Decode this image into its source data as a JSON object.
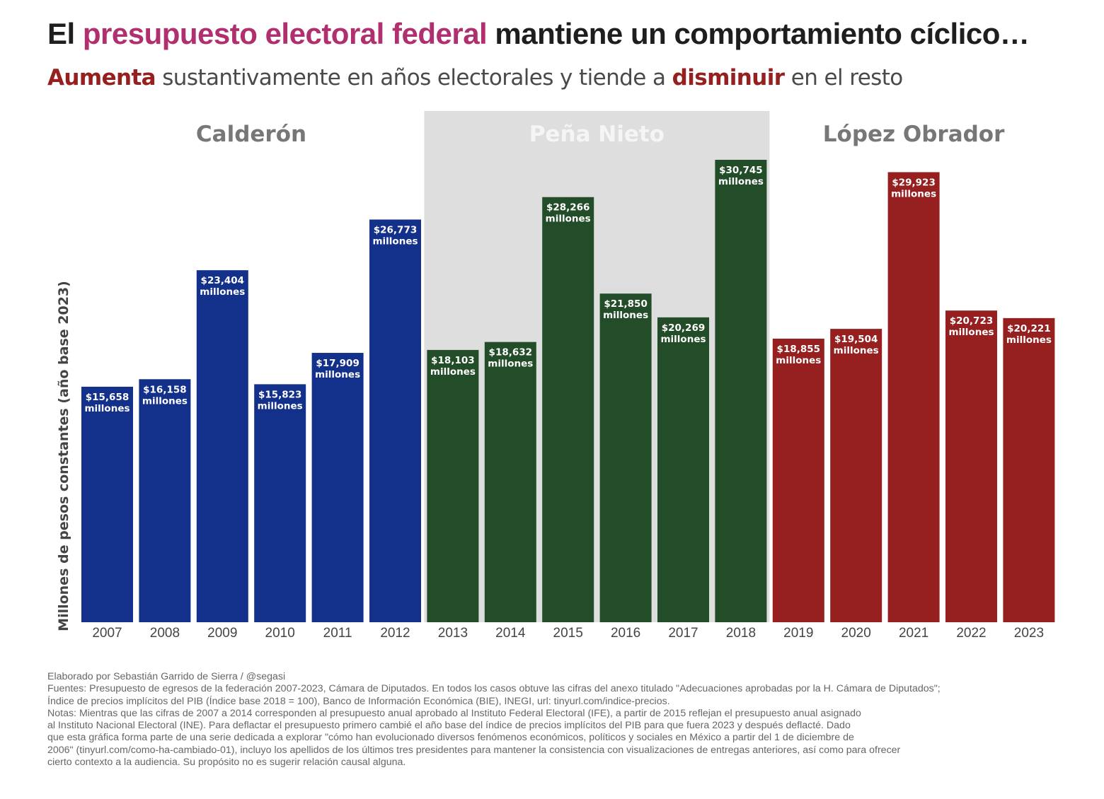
{
  "title": {
    "part1": "El ",
    "highlight": "presupuesto electoral federal",
    "part2": " mantiene un comportamiento cíclico…"
  },
  "subtitle": {
    "highlight1": "Aumenta",
    "part1": " sustantivamente en años electorales y tiende a ",
    "highlight2": "disminuir",
    "part2": " en el resto"
  },
  "colors": {
    "title_highlight": "#b0306f",
    "subtitle_highlight": "#962020",
    "calderon": "#13308a",
    "pena_nieto": "#234d28",
    "lopez_obrador": "#962020",
    "period_shade": "#dedede",
    "period_label": "#777777",
    "period_label_shaded": "#f5f5f5"
  },
  "chart_data": {
    "type": "bar",
    "title": "El presupuesto electoral federal mantiene un comportamiento cíclico…",
    "subtitle": "Aumenta sustantivamente en años electorales y tiende a disminuir en el resto",
    "xlabel": "",
    "ylabel": "Millones de pesos constantes (año base 2023)",
    "ylim": [
      0,
      30745
    ],
    "grid": false,
    "legend": "none",
    "categories": [
      "2007",
      "2008",
      "2009",
      "2010",
      "2011",
      "2012",
      "2013",
      "2014",
      "2015",
      "2016",
      "2017",
      "2018",
      "2019",
      "2020",
      "2021",
      "2022",
      "2023"
    ],
    "values": [
      15658,
      16158,
      23404,
      15823,
      17909,
      26773,
      18103,
      18632,
      28266,
      21850,
      20269,
      30745,
      18855,
      19504,
      29923,
      20723,
      20221
    ],
    "data_labels": [
      "$15,658",
      "$16,158",
      "$23,404",
      "$15,823",
      "$17,909",
      "$26,773",
      "$18,103",
      "$18,632",
      "$28,266",
      "$21,850",
      "$20,269",
      "$30,745",
      "$18,855",
      "$19,504",
      "$29,923",
      "$20,723",
      "$20,221"
    ],
    "data_label_unit": "millones",
    "periods": [
      {
        "name": "Calderón",
        "first": 0,
        "last": 5,
        "color_key": "calderon",
        "shaded": false
      },
      {
        "name": "Peña Nieto",
        "first": 6,
        "last": 11,
        "color_key": "pena_nieto",
        "shaded": true
      },
      {
        "name": "López Obrador",
        "first": 12,
        "last": 16,
        "color_key": "lopez_obrador",
        "shaded": false
      }
    ]
  },
  "footer": {
    "lines": [
      "Elaborado por Sebastián Garrido de Sierra / @segasi",
      "Fuentes: Presupuesto de egresos de la federación 2007-2023, Cámara de Diputados. En todos los casos obtuve las cifras del anexo titulado \"Adecuaciones aprobadas por la H. Cámara de Diputados\";",
      "Índice de precios implícitos del PIB (Índice base 2018 = 100), Banco de Información Económica (BIE), INEGI, url: tinyurl.com/indice-precios.",
      "Notas: Mientras que las cifras de 2007 a 2014 corresponden al presupuesto anual aprobado al Instituto Federal Electoral (IFE), a partir de 2015 reflejan el presupuesto anual asignado",
      "al Instituto Nacional Electoral (INE). Para deflactar el presupuesto primero cambié el año base del índice de precios implícitos del PIB para que fuera 2023 y después deflacté. Dado",
      "que esta gráfica forma parte de una serie dedicada a explorar \"cómo han evolucionado diversos fenómenos económicos, políticos y sociales en México a partir del 1 de diciembre de",
      "2006\" (tinyurl.com/como-ha-cambiado-01), incluyo los apellidos de los últimos tres presidentes para mantener la consistencia con visualizaciones de entregas anteriores, así como para ofrecer",
      "cierto contexto a la audiencia. Su propósito no es sugerir relación causal alguna."
    ]
  }
}
